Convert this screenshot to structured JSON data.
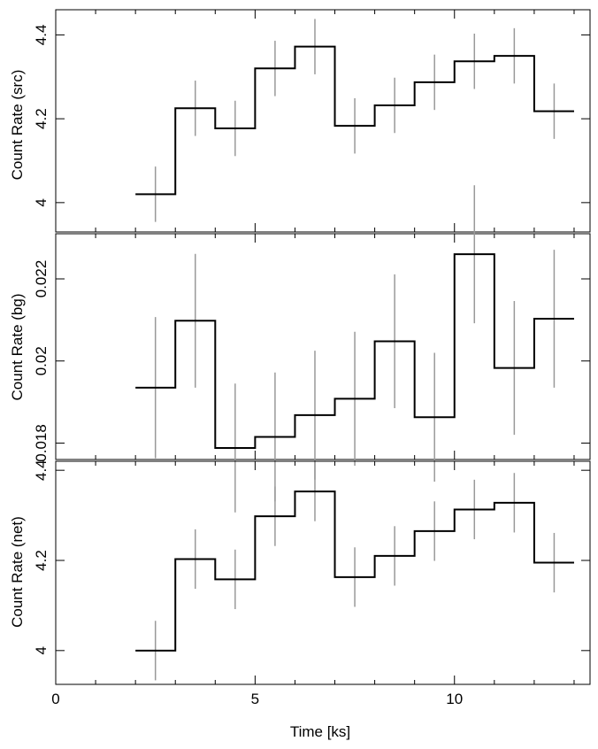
{
  "chart_data": [
    {
      "type": "line",
      "step": true,
      "ylabel": "Count Rate (src)",
      "ylim": [
        3.93,
        4.46
      ],
      "yticks": [
        4.0,
        4.2,
        4.4
      ],
      "yticklabels": [
        "4",
        "4.2",
        "4.4"
      ],
      "xlim": [
        0,
        13.4
      ],
      "x": [
        2.5,
        3.5,
        4.5,
        5.5,
        6.5,
        7.5,
        8.5,
        9.5,
        10.5,
        11.5,
        12.5
      ],
      "y": [
        4.02,
        4.225,
        4.177,
        4.32,
        4.372,
        4.183,
        4.232,
        4.287,
        4.337,
        4.35,
        4.218
      ],
      "yerr": [
        0.066,
        0.066,
        0.066,
        0.066,
        0.066,
        0.066,
        0.066,
        0.066,
        0.066,
        0.066,
        0.066
      ],
      "xerr": 0.5,
      "line_color": "#000000",
      "error_color": "#999999"
    },
    {
      "type": "line",
      "step": true,
      "ylabel": "Count Rate (bg)",
      "ylim": [
        0.0176,
        0.0231
      ],
      "yticks": [
        0.018,
        0.02,
        0.022
      ],
      "yticklabels": [
        "0.018",
        "0.02",
        "0.022"
      ],
      "xlim": [
        0,
        13.4
      ],
      "x": [
        2.5,
        3.5,
        4.5,
        5.5,
        6.5,
        7.5,
        8.5,
        9.5,
        10.5,
        11.5,
        12.5
      ],
      "y": [
        0.01935,
        0.02098,
        0.01788,
        0.01815,
        0.01868,
        0.01908,
        0.02048,
        0.01863,
        0.0226,
        0.01983,
        0.02103
      ],
      "yerr": [
        0.00172,
        0.00163,
        0.00157,
        0.00157,
        0.00157,
        0.00163,
        0.00163,
        0.00157,
        0.00168,
        0.00163,
        0.00168
      ],
      "xerr": 0.5,
      "line_color": "#000000",
      "error_color": "#999999"
    },
    {
      "type": "line",
      "step": true,
      "ylabel": "Count Rate (net)",
      "xlabel": "Time [ks]",
      "ylim": [
        3.925,
        4.42
      ],
      "yticks": [
        4.0,
        4.2,
        4.4
      ],
      "yticklabels": [
        "4",
        "4.2",
        "4.4"
      ],
      "xlim": [
        0,
        13.4
      ],
      "xticks": [
        0,
        5,
        10
      ],
      "xticklabels": [
        "0",
        "5",
        "10"
      ],
      "x": [
        2.5,
        3.5,
        4.5,
        5.5,
        6.5,
        7.5,
        8.5,
        9.5,
        10.5,
        11.5,
        12.5
      ],
      "y": [
        4.0,
        4.203,
        4.158,
        4.298,
        4.353,
        4.163,
        4.21,
        4.265,
        4.313,
        4.328,
        4.195
      ],
      "yerr": [
        0.066,
        0.066,
        0.066,
        0.066,
        0.066,
        0.066,
        0.066,
        0.066,
        0.066,
        0.066,
        0.066
      ],
      "xerr": 0.5,
      "line_color": "#000000",
      "error_color": "#999999"
    }
  ]
}
